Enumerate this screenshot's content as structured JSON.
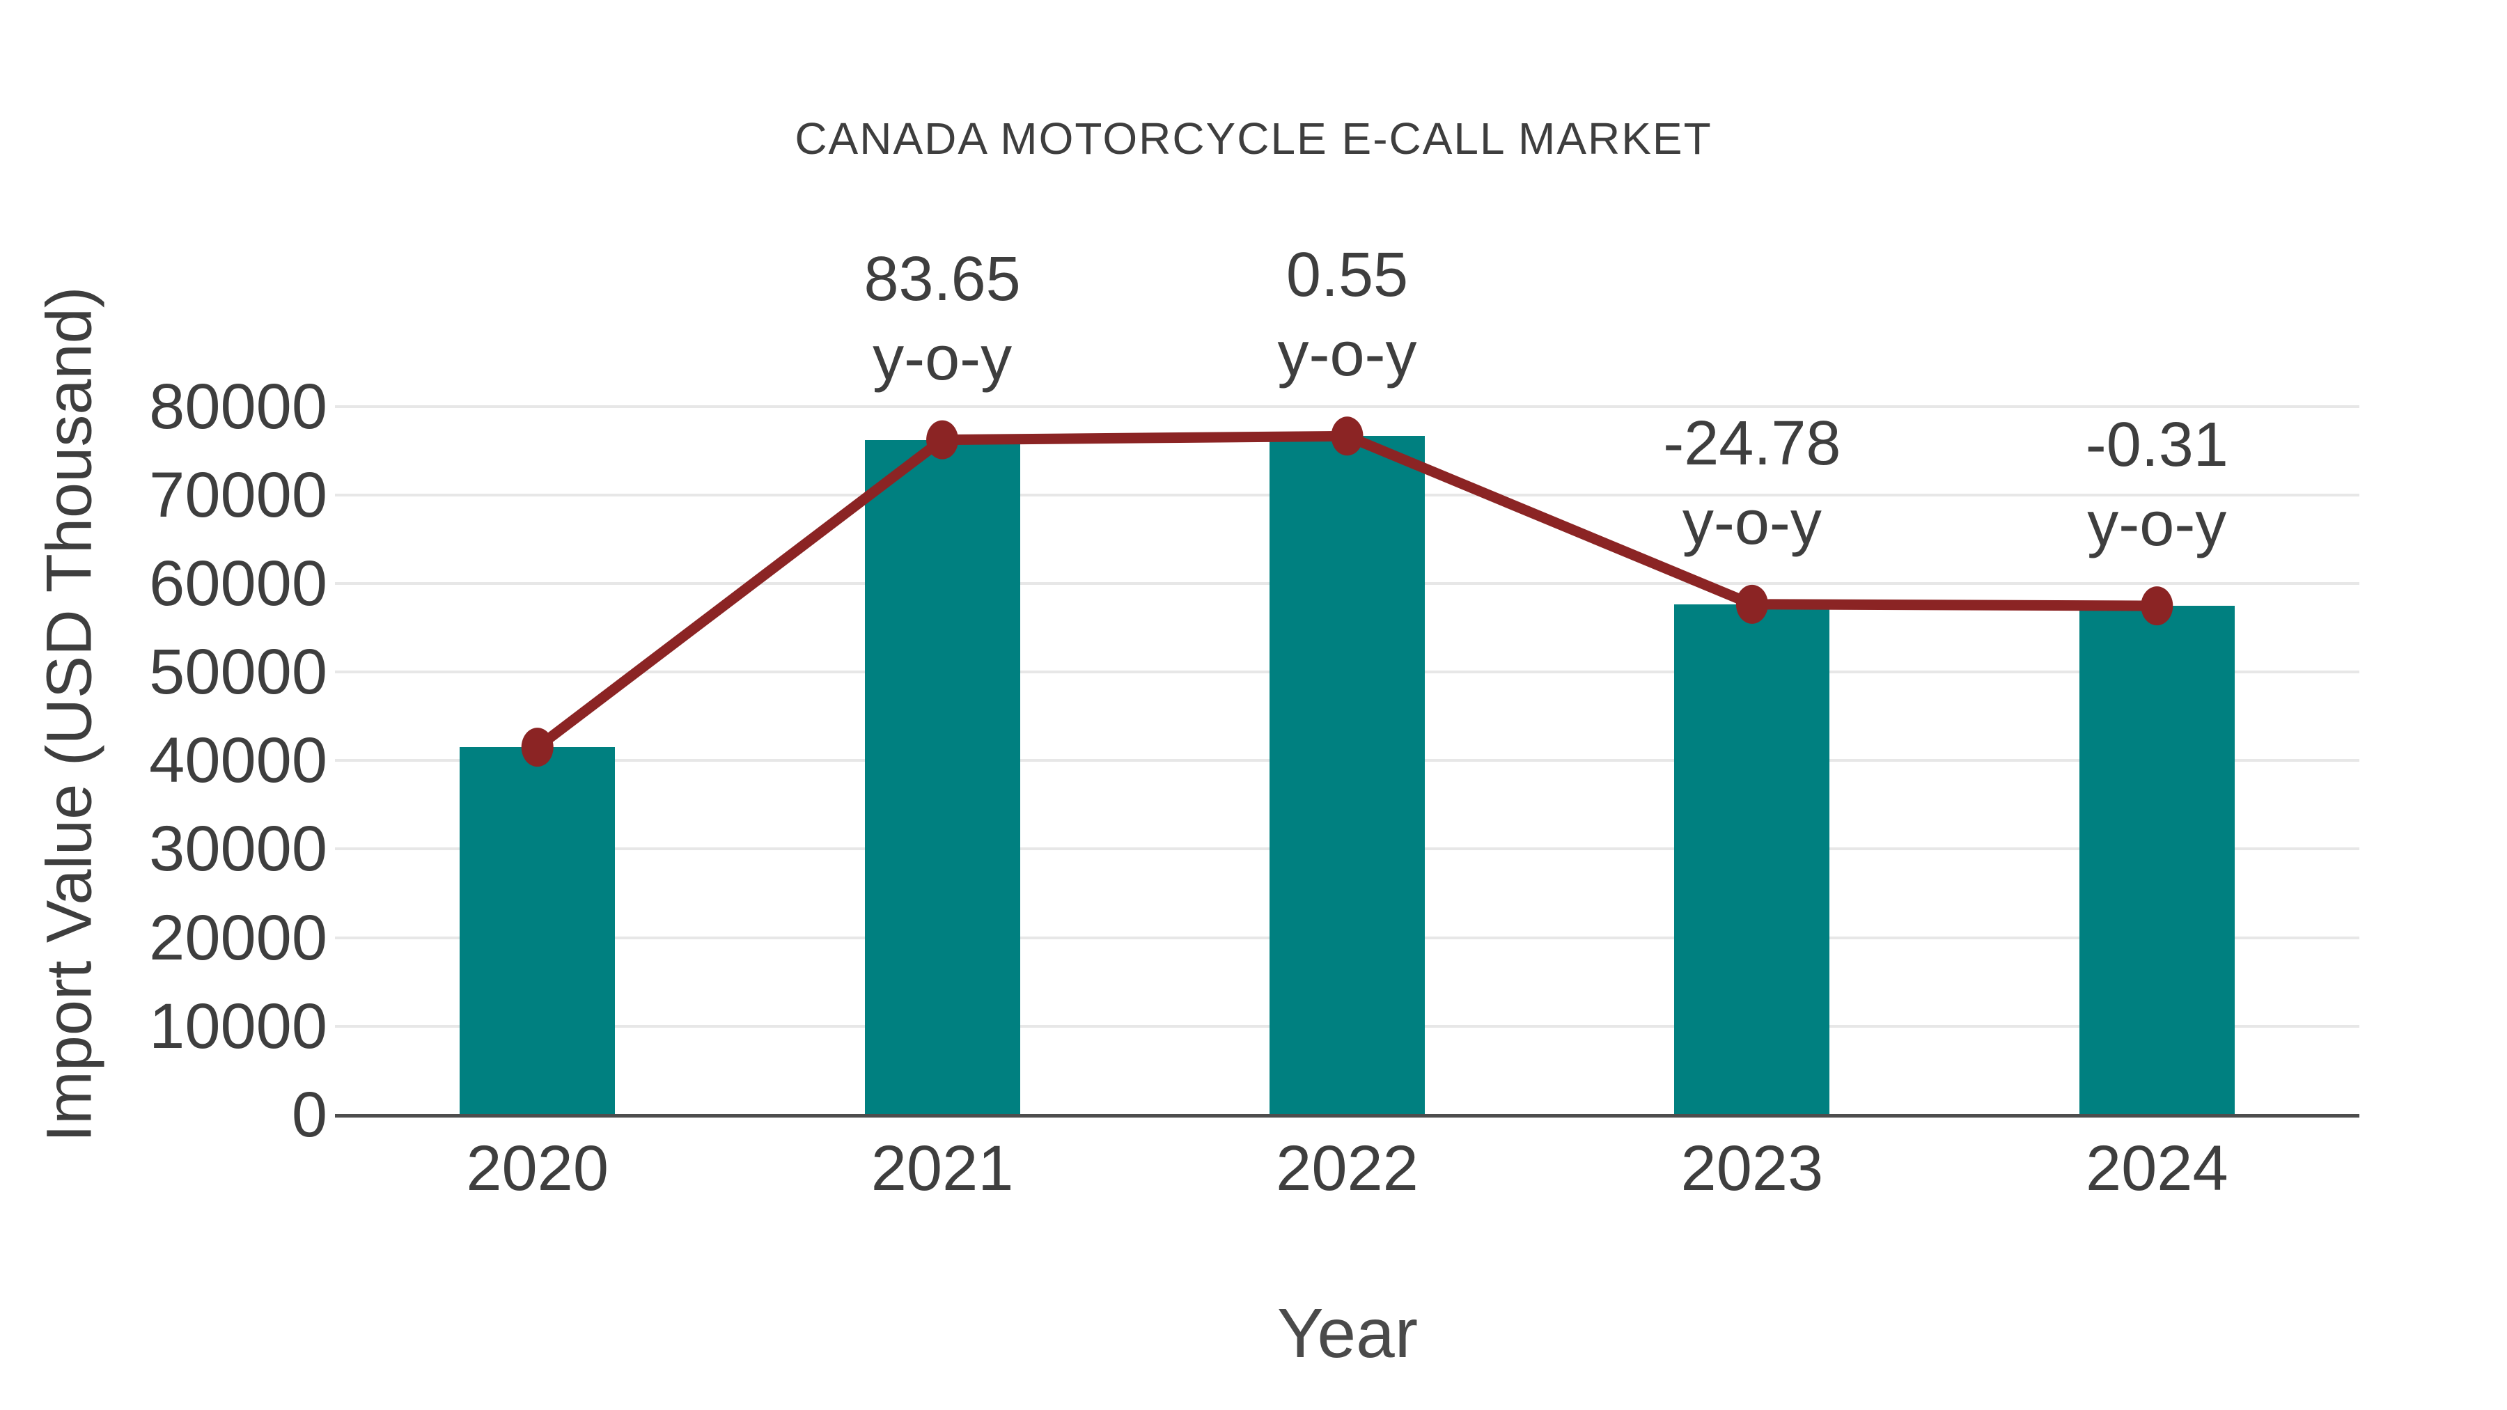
{
  "chart_data": {
    "type": "bar",
    "title": "CANADA MOTORCYCLE E-CALL MARKET",
    "xlabel": "Year",
    "ylabel": "Import Value (USD Thousand)",
    "categories": [
      "2020",
      "2021",
      "2022",
      "2023",
      "2024"
    ],
    "series": [
      {
        "name": "Import Value (USD Thousand)",
        "type": "bar",
        "color": "#008080",
        "values": [
          41500,
          76215,
          76634,
          57644,
          57465
        ]
      },
      {
        "name": "Import Value trend line",
        "type": "line",
        "color": "#8B2424",
        "values": [
          41500,
          76215,
          76634,
          57644,
          57465
        ]
      }
    ],
    "annotations": [
      {
        "category": "2021",
        "value_line": "83.65",
        "label_line": "y-o-y"
      },
      {
        "category": "2022",
        "value_line": "0.55",
        "label_line": "y-o-y"
      },
      {
        "category": "2023",
        "value_line": "-24.78",
        "label_line": "y-o-y"
      },
      {
        "category": "2024",
        "value_line": "-0.31",
        "label_line": "y-o-y"
      }
    ],
    "yticks": [
      "0",
      "10000",
      "20000",
      "30000",
      "40000",
      "50000",
      "60000",
      "70000",
      "80000"
    ],
    "ylim": [
      0,
      80000
    ],
    "grid": "horizontal",
    "legend": "none",
    "colors": {
      "bar": "#008080",
      "line": "#8B2424",
      "text": "#3E3E3E",
      "gridline": "#E7E7E7",
      "axis": "#4D4D4D",
      "background": "#FFFFFF"
    }
  }
}
